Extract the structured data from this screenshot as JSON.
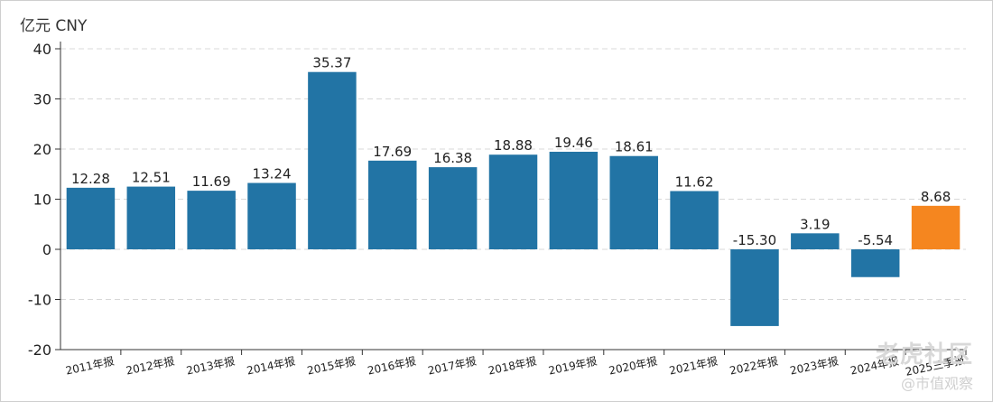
{
  "chart_data": {
    "type": "bar",
    "unit_label": "亿元  CNY",
    "categories": [
      "2011年报",
      "2012年报",
      "2013年报",
      "2014年报",
      "2015年报",
      "2016年报",
      "2017年报",
      "2018年报",
      "2019年报",
      "2020年报",
      "2021年报",
      "2022年报",
      "2023年报",
      "2024年报",
      "2025三季报"
    ],
    "values": [
      12.28,
      12.51,
      11.69,
      13.24,
      35.37,
      17.69,
      16.38,
      18.88,
      19.46,
      18.61,
      11.62,
      -15.3,
      3.19,
      -5.54,
      8.68
    ],
    "value_labels": [
      "12.28",
      "12.51",
      "11.69",
      "13.24",
      "35.37",
      "17.69",
      "16.38",
      "18.88",
      "19.46",
      "18.61",
      "11.62",
      "-15.30",
      "3.19",
      "-5.54",
      "8.68"
    ],
    "ylim": [
      -20,
      40
    ],
    "yticks": [
      -20,
      -10,
      0,
      10,
      20,
      30,
      40
    ],
    "grid": true,
    "colors": {
      "default": "#2274a5",
      "highlight": "#f5861f"
    },
    "highlight_index": 14
  },
  "watermark": {
    "main": "老虎社区",
    "sub": "@市值观察"
  }
}
